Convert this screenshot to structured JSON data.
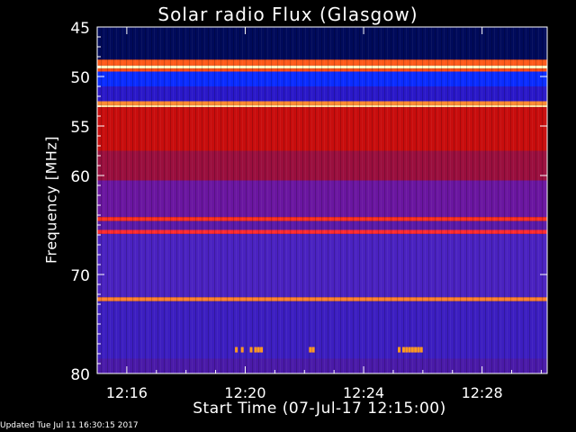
{
  "chart_data": {
    "type": "heatmap",
    "title": "Solar radio Flux (Glasgow)",
    "xlabel": "Start Time (07-Jul-17 12:15:00)",
    "ylabel": "Frequency [MHz]",
    "x_ticks": [
      "12:16",
      "12:20",
      "12:24",
      "12:28"
    ],
    "x_tick_minutes": [
      16,
      20,
      24,
      28
    ],
    "xlim_minutes": [
      15,
      30.2
    ],
    "y_ticks": [
      45,
      50,
      55,
      60,
      70,
      80
    ],
    "ylim_mhz": [
      45,
      80
    ],
    "bands": [
      {
        "from": 45.0,
        "to": 48.3,
        "color": "#000a5a"
      },
      {
        "from": 48.3,
        "to": 48.9,
        "color": "#ff5a1a"
      },
      {
        "from": 48.9,
        "to": 49.2,
        "color": "#fff2c0"
      },
      {
        "from": 49.2,
        "to": 49.5,
        "color": "#ff4a10"
      },
      {
        "from": 49.5,
        "to": 51.0,
        "color": "#0a2cff"
      },
      {
        "from": 51.0,
        "to": 52.5,
        "color": "#2a18c8"
      },
      {
        "from": 52.5,
        "to": 52.9,
        "color": "#ff8a30"
      },
      {
        "from": 52.9,
        "to": 53.1,
        "color": "#ffe0a0"
      },
      {
        "from": 53.1,
        "to": 57.5,
        "color": "#c80d0d"
      },
      {
        "from": 57.5,
        "to": 60.5,
        "color": "#9a0f3e"
      },
      {
        "from": 60.5,
        "to": 64.2,
        "color": "#6a16a0"
      },
      {
        "from": 64.2,
        "to": 64.6,
        "color": "#ff3020"
      },
      {
        "from": 64.6,
        "to": 65.5,
        "color": "#5a1aa8"
      },
      {
        "from": 65.5,
        "to": 65.9,
        "color": "#ff2a30"
      },
      {
        "from": 65.9,
        "to": 72.3,
        "color": "#4a22c0"
      },
      {
        "from": 72.3,
        "to": 72.7,
        "color": "#ff8030"
      },
      {
        "from": 72.7,
        "to": 78.5,
        "color": "#3c1ec0"
      },
      {
        "from": 78.5,
        "to": 80.0,
        "color": "#4a1aa8"
      }
    ],
    "bursts": [
      {
        "t": 19.7,
        "f": 77.6
      },
      {
        "t": 19.9,
        "f": 77.6
      },
      {
        "t": 20.2,
        "f": 77.6
      },
      {
        "t": 20.35,
        "f": 77.6
      },
      {
        "t": 20.45,
        "f": 77.6
      },
      {
        "t": 20.55,
        "f": 77.6
      },
      {
        "t": 22.2,
        "f": 77.6
      },
      {
        "t": 22.3,
        "f": 77.6
      },
      {
        "t": 25.2,
        "f": 77.6
      },
      {
        "t": 25.35,
        "f": 77.6
      },
      {
        "t": 25.45,
        "f": 77.6
      },
      {
        "t": 25.55,
        "f": 77.6
      },
      {
        "t": 25.65,
        "f": 77.6
      },
      {
        "t": 25.75,
        "f": 77.6
      },
      {
        "t": 25.85,
        "f": 77.6
      },
      {
        "t": 25.95,
        "f": 77.6
      }
    ]
  },
  "footer": "Updated Tue Jul 11 16:30:15 2017"
}
